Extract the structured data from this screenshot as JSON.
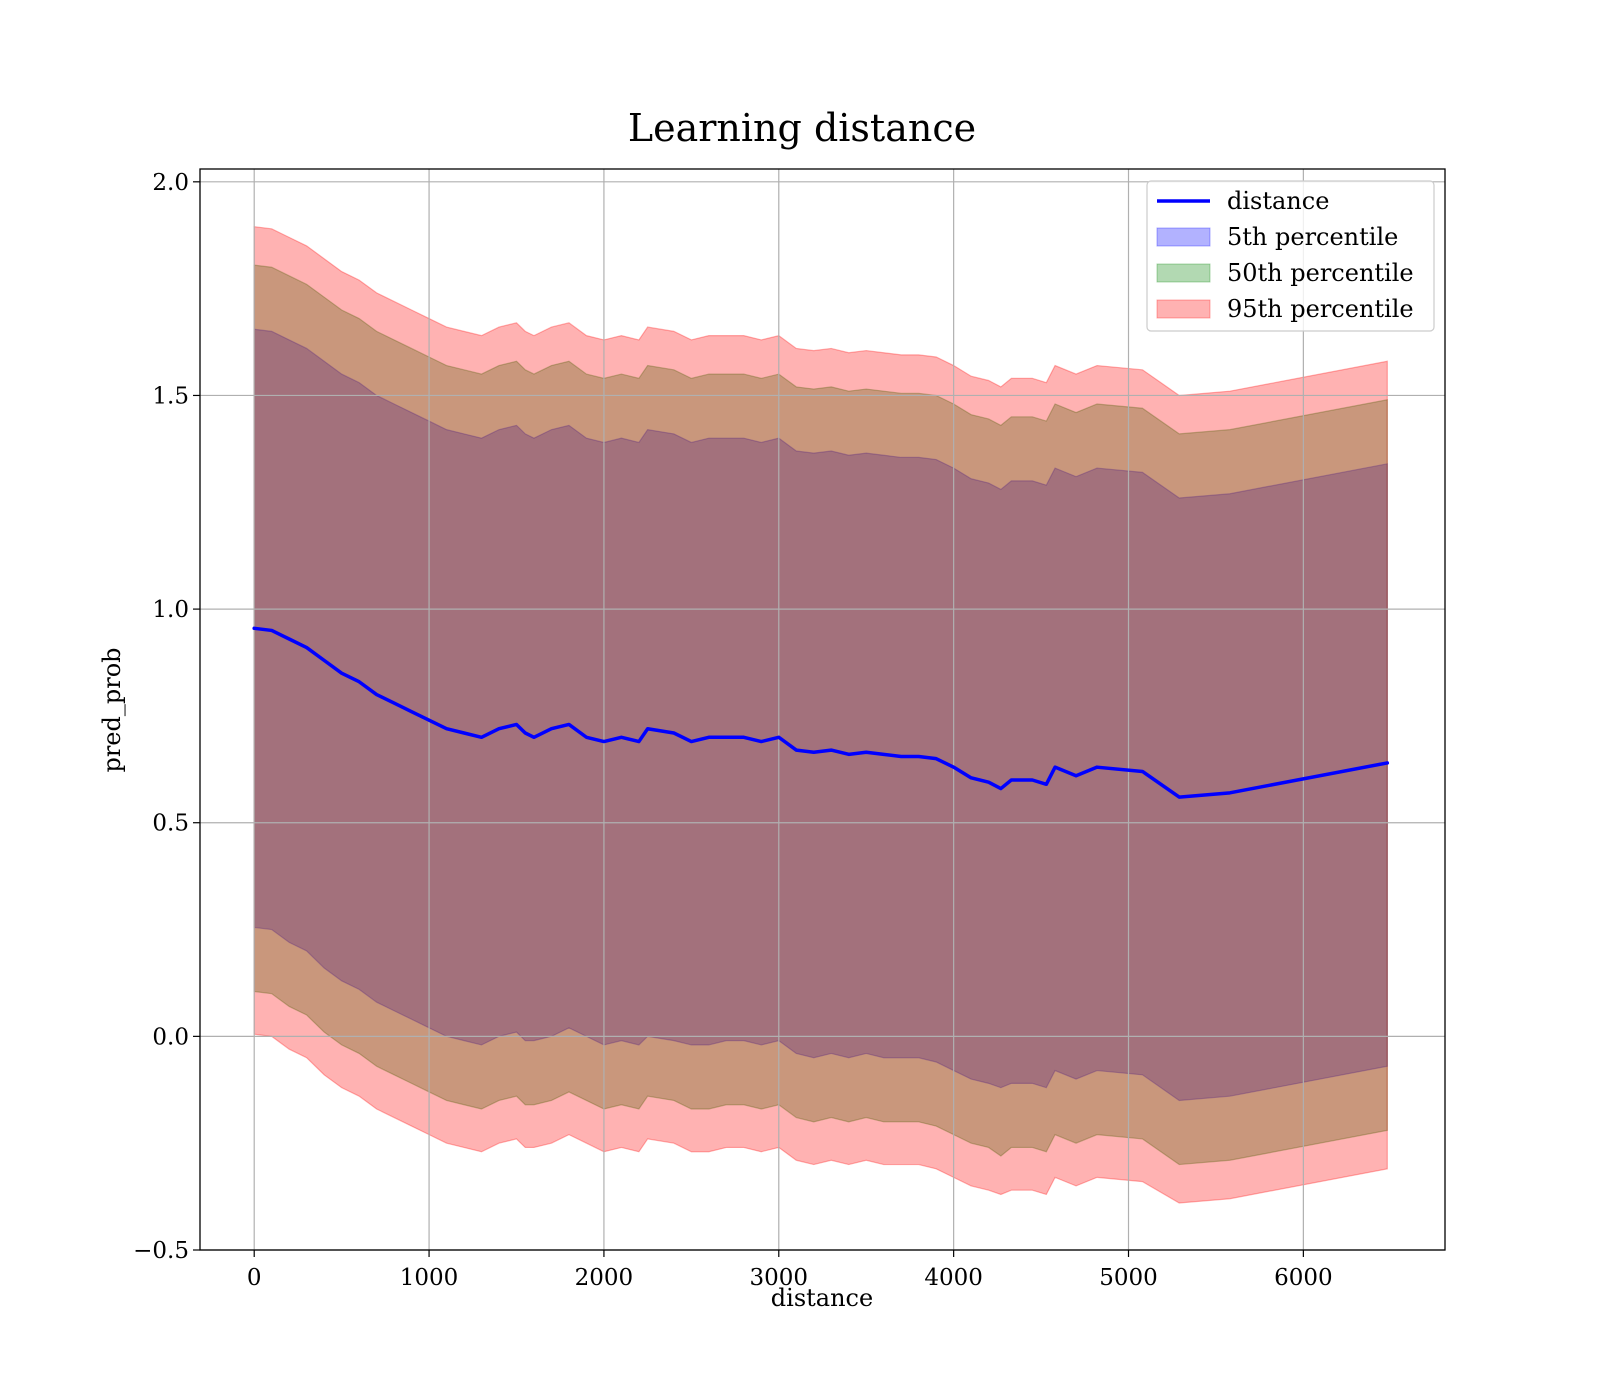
{
  "chart_data": {
    "type": "area",
    "title": "Learning distance",
    "xlabel": "distance",
    "ylabel": "pred_prob",
    "xlim": [
      -310,
      6810
    ],
    "ylim": [
      -0.5,
      2.03
    ],
    "xticks": [
      0,
      1000,
      2000,
      3000,
      4000,
      5000,
      6000
    ],
    "yticks": [
      -0.5,
      0.0,
      0.5,
      1.0,
      1.5,
      2.0
    ],
    "xtick_labels": [
      "0",
      "1000",
      "2000",
      "3000",
      "4000",
      "5000",
      "6000"
    ],
    "ytick_labels": [
      "−0.5",
      "0.0",
      "0.5",
      "1.0",
      "1.5",
      "2.0"
    ],
    "grid": true,
    "legend_position": "top-right",
    "x": [
      0,
      100,
      200,
      300,
      400,
      500,
      600,
      700,
      800,
      900,
      1000,
      1100,
      1200,
      1300,
      1400,
      1500,
      1550,
      1600,
      1700,
      1800,
      1900,
      2000,
      2100,
      2200,
      2250,
      2400,
      2500,
      2600,
      2700,
      2800,
      2900,
      3000,
      3100,
      3200,
      3300,
      3400,
      3500,
      3600,
      3700,
      3800,
      3900,
      4000,
      4100,
      4200,
      4270,
      4330,
      4450,
      4530,
      4580,
      4700,
      4820,
      5080,
      5290,
      5580,
      6480
    ],
    "series": [
      {
        "name": "distance",
        "type": "line",
        "color": "#0000ff",
        "values": [
          0.955,
          0.95,
          0.93,
          0.91,
          0.88,
          0.85,
          0.83,
          0.8,
          0.78,
          0.76,
          0.74,
          0.72,
          0.71,
          0.7,
          0.72,
          0.73,
          0.71,
          0.7,
          0.72,
          0.73,
          0.7,
          0.69,
          0.7,
          0.69,
          0.72,
          0.71,
          0.69,
          0.7,
          0.7,
          0.7,
          0.69,
          0.7,
          0.67,
          0.665,
          0.67,
          0.66,
          0.665,
          0.66,
          0.655,
          0.655,
          0.65,
          0.63,
          0.605,
          0.595,
          0.58,
          0.6,
          0.6,
          0.59,
          0.63,
          0.61,
          0.63,
          0.62,
          0.56,
          0.57,
          0.64
        ]
      },
      {
        "name": "5th percentile",
        "type": "band",
        "color": "#0000ff",
        "lower": [
          0.255,
          0.25,
          0.22,
          0.2,
          0.16,
          0.13,
          0.11,
          0.08,
          0.06,
          0.04,
          0.02,
          0.0,
          -0.01,
          -0.02,
          0.0,
          0.01,
          -0.01,
          -0.01,
          0.0,
          0.02,
          0.0,
          -0.02,
          -0.01,
          -0.02,
          0.0,
          -0.01,
          -0.02,
          -0.02,
          -0.01,
          -0.01,
          -0.02,
          -0.01,
          -0.04,
          -0.05,
          -0.04,
          -0.05,
          -0.04,
          -0.05,
          -0.05,
          -0.05,
          -0.06,
          -0.08,
          -0.1,
          -0.11,
          -0.12,
          -0.11,
          -0.11,
          -0.12,
          -0.08,
          -0.1,
          -0.08,
          -0.09,
          -0.15,
          -0.14,
          -0.07
        ],
        "upper": [
          1.655,
          1.65,
          1.63,
          1.61,
          1.58,
          1.55,
          1.53,
          1.5,
          1.48,
          1.46,
          1.44,
          1.42,
          1.41,
          1.4,
          1.42,
          1.43,
          1.41,
          1.4,
          1.42,
          1.43,
          1.4,
          1.39,
          1.4,
          1.39,
          1.42,
          1.41,
          1.39,
          1.4,
          1.4,
          1.4,
          1.39,
          1.4,
          1.37,
          1.365,
          1.37,
          1.36,
          1.365,
          1.36,
          1.355,
          1.355,
          1.35,
          1.33,
          1.305,
          1.295,
          1.28,
          1.3,
          1.3,
          1.29,
          1.33,
          1.31,
          1.33,
          1.32,
          1.26,
          1.27,
          1.34
        ]
      },
      {
        "name": "50th percentile",
        "type": "band",
        "color": "#008000",
        "lower": [
          0.105,
          0.1,
          0.07,
          0.05,
          0.01,
          -0.02,
          -0.04,
          -0.07,
          -0.09,
          -0.11,
          -0.13,
          -0.15,
          -0.16,
          -0.17,
          -0.15,
          -0.14,
          -0.16,
          -0.16,
          -0.15,
          -0.13,
          -0.15,
          -0.17,
          -0.16,
          -0.17,
          -0.14,
          -0.15,
          -0.17,
          -0.17,
          -0.16,
          -0.16,
          -0.17,
          -0.16,
          -0.19,
          -0.2,
          -0.19,
          -0.2,
          -0.19,
          -0.2,
          -0.2,
          -0.2,
          -0.21,
          -0.23,
          -0.25,
          -0.26,
          -0.28,
          -0.26,
          -0.26,
          -0.27,
          -0.23,
          -0.25,
          -0.23,
          -0.24,
          -0.3,
          -0.29,
          -0.22
        ],
        "upper": [
          1.805,
          1.8,
          1.78,
          1.76,
          1.73,
          1.7,
          1.68,
          1.65,
          1.63,
          1.61,
          1.59,
          1.57,
          1.56,
          1.55,
          1.57,
          1.58,
          1.56,
          1.55,
          1.57,
          1.58,
          1.55,
          1.54,
          1.55,
          1.54,
          1.57,
          1.56,
          1.54,
          1.55,
          1.55,
          1.55,
          1.54,
          1.55,
          1.52,
          1.515,
          1.52,
          1.51,
          1.515,
          1.51,
          1.505,
          1.505,
          1.5,
          1.48,
          1.455,
          1.445,
          1.43,
          1.45,
          1.45,
          1.44,
          1.48,
          1.46,
          1.48,
          1.47,
          1.41,
          1.42,
          1.49
        ]
      },
      {
        "name": "95th percentile",
        "type": "band",
        "color": "#ff0000",
        "lower": [
          0.005,
          0.0,
          -0.03,
          -0.05,
          -0.09,
          -0.12,
          -0.14,
          -0.17,
          -0.19,
          -0.21,
          -0.23,
          -0.25,
          -0.26,
          -0.27,
          -0.25,
          -0.24,
          -0.26,
          -0.26,
          -0.25,
          -0.23,
          -0.25,
          -0.27,
          -0.26,
          -0.27,
          -0.24,
          -0.25,
          -0.27,
          -0.27,
          -0.26,
          -0.26,
          -0.27,
          -0.26,
          -0.29,
          -0.3,
          -0.29,
          -0.3,
          -0.29,
          -0.3,
          -0.3,
          -0.3,
          -0.31,
          -0.33,
          -0.35,
          -0.36,
          -0.37,
          -0.36,
          -0.36,
          -0.37,
          -0.33,
          -0.35,
          -0.33,
          -0.34,
          -0.39,
          -0.38,
          -0.31
        ],
        "upper": [
          1.895,
          1.89,
          1.87,
          1.85,
          1.82,
          1.79,
          1.77,
          1.74,
          1.72,
          1.7,
          1.68,
          1.66,
          1.65,
          1.64,
          1.66,
          1.67,
          1.65,
          1.64,
          1.66,
          1.67,
          1.64,
          1.63,
          1.64,
          1.63,
          1.66,
          1.65,
          1.63,
          1.64,
          1.64,
          1.64,
          1.63,
          1.64,
          1.61,
          1.605,
          1.61,
          1.6,
          1.605,
          1.6,
          1.595,
          1.595,
          1.59,
          1.57,
          1.545,
          1.535,
          1.52,
          1.54,
          1.54,
          1.53,
          1.57,
          1.55,
          1.57,
          1.56,
          1.5,
          1.51,
          1.58
        ]
      }
    ]
  }
}
